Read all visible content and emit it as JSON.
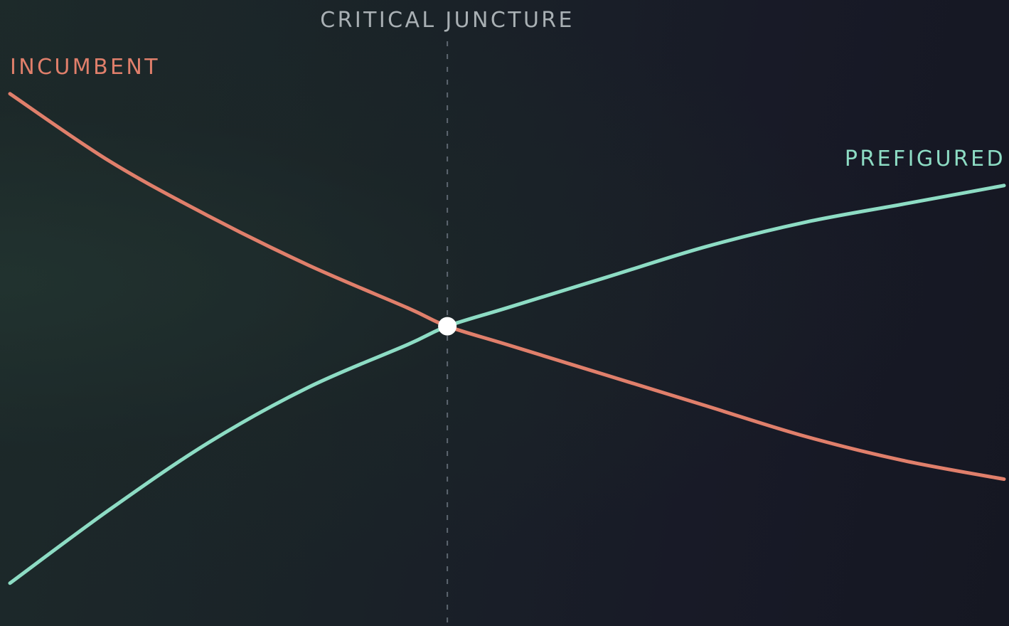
{
  "chart_data": {
    "type": "line",
    "title": "",
    "xlabel": "",
    "ylabel": "",
    "xlim": [
      0,
      1
    ],
    "ylim": [
      0,
      1
    ],
    "grid": false,
    "x": [
      0,
      0.1,
      0.2,
      0.3,
      0.4,
      0.44,
      0.5,
      0.6,
      0.7,
      0.8,
      0.9,
      1.0
    ],
    "series": [
      {
        "name": "INCUMBENT",
        "color": "#e07f6b",
        "values": [
          0.87,
          0.76,
          0.67,
          0.59,
          0.52,
          0.49,
          0.46,
          0.41,
          0.36,
          0.31,
          0.27,
          0.24
        ]
      },
      {
        "name": "PREFIGURED",
        "color": "#8ddcc4",
        "values": [
          0.07,
          0.19,
          0.3,
          0.39,
          0.46,
          0.49,
          0.52,
          0.57,
          0.62,
          0.66,
          0.69,
          0.72
        ]
      }
    ],
    "annotations": [
      {
        "text": "CRITICAL JUNCTURE",
        "x": 0.44,
        "style": "dashed-vertical-line",
        "color": "#a9b0b4"
      }
    ],
    "marker": {
      "x": 0.44,
      "y": 0.49,
      "color": "#ffffff"
    }
  }
}
